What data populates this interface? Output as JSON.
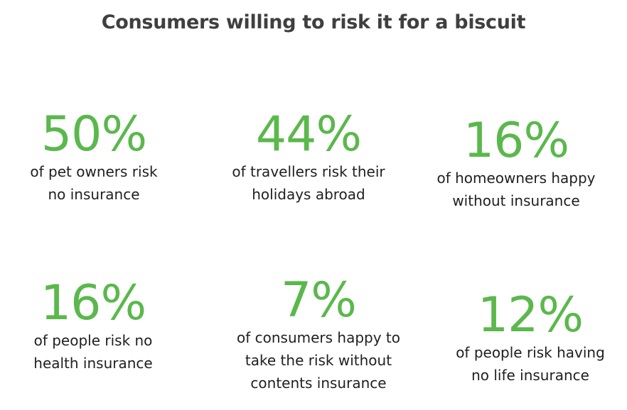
{
  "title": "Consumers willing to risk it for a biscuit",
  "accent_color": "#5bb84c",
  "stats": [
    {
      "value": "50%",
      "lines": [
        "of pet owners risk",
        "no insurance"
      ]
    },
    {
      "value": "44%",
      "lines": [
        "of travellers risk their",
        "holidays abroad"
      ]
    },
    {
      "value": "16%",
      "lines": [
        "of homeowners happy",
        "without insurance"
      ]
    },
    {
      "value": "16%",
      "lines": [
        "of people risk no",
        "health insurance"
      ]
    },
    {
      "value": "7%",
      "lines": [
        "of consumers happy to",
        "take the risk without",
        "contents insurance"
      ]
    },
    {
      "value": "12%",
      "lines": [
        "of people risk having",
        "no life insurance"
      ]
    }
  ]
}
